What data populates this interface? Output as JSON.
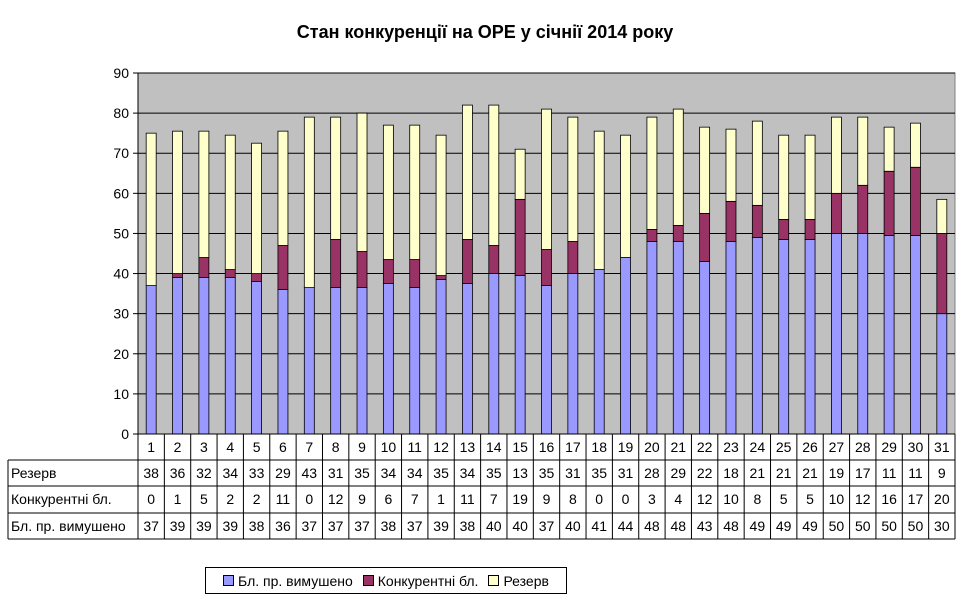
{
  "chart_data": {
    "type": "bar",
    "stacked": true,
    "title": "Стан конкуренції на ОРЕ  у січнії 2014 року",
    "xlabel": "",
    "ylabel": "",
    "ylim": [
      0,
      90
    ],
    "y_ticks": [
      "0",
      "10",
      "20",
      "30",
      "40",
      "50",
      "60",
      "70",
      "80",
      "90"
    ],
    "grid": true,
    "legend_position": "bottom",
    "plot_background": "#c0c0c0",
    "categories": [
      "1",
      "2",
      "3",
      "4",
      "5",
      "6",
      "7",
      "8",
      "9",
      "10",
      "11",
      "12",
      "13",
      "14",
      "15",
      "16",
      "17",
      "18",
      "19",
      "20",
      "21",
      "22",
      "23",
      "24",
      "25",
      "26",
      "27",
      "28",
      "29",
      "30",
      "31"
    ],
    "series": [
      {
        "name": "Бл. пр. вимушено",
        "color": "#9999ff",
        "values": [
          37,
          39,
          39,
          39,
          38,
          36,
          36.5,
          36.5,
          36.5,
          37.5,
          36.5,
          38.5,
          37.5,
          40,
          39.5,
          37,
          40,
          41,
          44,
          48,
          48,
          43,
          48,
          49,
          48.5,
          48.5,
          50,
          50,
          49.5,
          49.5,
          30
        ]
      },
      {
        "name": "Конкурентні бл.",
        "color": "#993366",
        "values": [
          0,
          1,
          5,
          2,
          2,
          11,
          0,
          12,
          9,
          6,
          7,
          1,
          11,
          7,
          19,
          9,
          8,
          0,
          0,
          3,
          4,
          12,
          10,
          8,
          5,
          5,
          10,
          12,
          16,
          17,
          20
        ]
      },
      {
        "name": "Резерв",
        "color": "#ffffcc",
        "values": [
          38,
          35.5,
          31.5,
          33.5,
          32.5,
          28.5,
          42.5,
          30.5,
          34.5,
          33.5,
          33.5,
          35,
          33.5,
          35,
          12.5,
          35,
          31,
          34.5,
          30.5,
          28,
          29,
          21.5,
          18,
          21,
          21,
          21,
          19,
          17,
          11,
          11,
          8.5
        ]
      }
    ],
    "table": {
      "column_headers": [
        "1",
        "2",
        "3",
        "4",
        "5",
        "6",
        "7",
        "8",
        "9",
        "10",
        "11",
        "12",
        "13",
        "14",
        "15",
        "16",
        "17",
        "18",
        "19",
        "20",
        "21",
        "22",
        "23",
        "24",
        "25",
        "26",
        "27",
        "28",
        "29",
        "30",
        "31"
      ],
      "rows": [
        {
          "label": "Резерв",
          "values": [
            "38",
            "36",
            "32",
            "34",
            "33",
            "29",
            "43",
            "31",
            "35",
            "34",
            "34",
            "35",
            "34",
            "35",
            "13",
            "35",
            "31",
            "35",
            "31",
            "28",
            "29",
            "22",
            "18",
            "21",
            "21",
            "21",
            "19",
            "17",
            "11",
            "11",
            "9"
          ]
        },
        {
          "label": "Конкурентні бл.",
          "values": [
            "0",
            "1",
            "5",
            "2",
            "2",
            "11",
            "0",
            "12",
            "9",
            "6",
            "7",
            "1",
            "11",
            "7",
            "19",
            "9",
            "8",
            "0",
            "0",
            "3",
            "4",
            "12",
            "10",
            "8",
            "5",
            "5",
            "10",
            "12",
            "16",
            "17",
            "20"
          ]
        },
        {
          "label": "Бл. пр. вимушено",
          "values": [
            "37",
            "39",
            "39",
            "39",
            "38",
            "36",
            "37",
            "37",
            "37",
            "38",
            "37",
            "39",
            "38",
            "40",
            "40",
            "37",
            "40",
            "41",
            "44",
            "48",
            "48",
            "43",
            "48",
            "49",
            "49",
            "49",
            "50",
            "50",
            "50",
            "50",
            "30"
          ]
        }
      ]
    }
  },
  "legend": {
    "items": [
      {
        "label": "Бл. пр. вимушено",
        "color": "#9999ff"
      },
      {
        "label": "Конкурентні бл.",
        "color": "#993366"
      },
      {
        "label": "Резерв",
        "color": "#ffffcc"
      }
    ]
  }
}
